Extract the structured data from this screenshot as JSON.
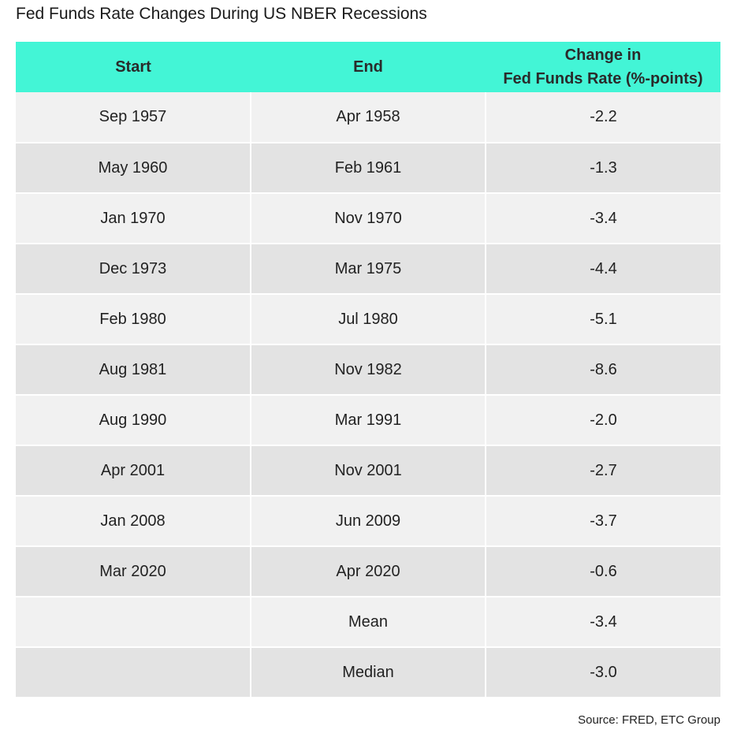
{
  "title": "Fed Funds Rate Changes During US NBER Recessions",
  "header": {
    "start": "Start",
    "end": "End",
    "change_line1": "Change in",
    "change_line2": "Fed Funds Rate (%-points)"
  },
  "rows": [
    {
      "start": "Sep 1957",
      "end": "Apr 1958",
      "change": "-2.2"
    },
    {
      "start": "May 1960",
      "end": "Feb 1961",
      "change": "-1.3"
    },
    {
      "start": "Jan 1970",
      "end": "Nov 1970",
      "change": "-3.4"
    },
    {
      "start": "Dec 1973",
      "end": "Mar 1975",
      "change": "-4.4"
    },
    {
      "start": "Feb 1980",
      "end": "Jul 1980",
      "change": "-5.1"
    },
    {
      "start": "Aug 1981",
      "end": "Nov 1982",
      "change": "-8.6"
    },
    {
      "start": "Aug 1990",
      "end": "Mar 1991",
      "change": "-2.0"
    },
    {
      "start": "Apr 2001",
      "end": "Nov 2001",
      "change": "-2.7"
    },
    {
      "start": "Jan 2008",
      "end": "Jun 2009",
      "change": "-3.7"
    },
    {
      "start": "Mar 2020",
      "end": "Apr 2020",
      "change": "-0.6"
    },
    {
      "start": "",
      "end": "Mean",
      "change": "-3.4"
    },
    {
      "start": "",
      "end": "Median",
      "change": "-3.0"
    }
  ],
  "source": "Source: FRED, ETC Group",
  "colors": {
    "header_bg": "#43f5d6",
    "row_light": "#f1f1f1",
    "row_dark": "#e3e3e3"
  },
  "chart_data": {
    "type": "table",
    "title": "Fed Funds Rate Changes During US NBER Recessions",
    "columns": [
      "Start",
      "End",
      "Change in Fed Funds Rate (%-points)"
    ],
    "rows": [
      [
        "Sep 1957",
        "Apr 1958",
        -2.2
      ],
      [
        "May 1960",
        "Feb 1961",
        -1.3
      ],
      [
        "Jan 1970",
        "Nov 1970",
        -3.4
      ],
      [
        "Dec 1973",
        "Mar 1975",
        -4.4
      ],
      [
        "Feb 1980",
        "Jul 1980",
        -5.1
      ],
      [
        "Aug 1981",
        "Nov 1982",
        -8.6
      ],
      [
        "Aug 1990",
        "Mar 1991",
        -2.0
      ],
      [
        "Apr 2001",
        "Nov 2001",
        -2.7
      ],
      [
        "Jan 2008",
        "Jun 2009",
        -3.7
      ],
      [
        "Mar 2020",
        "Apr 2020",
        -0.6
      ],
      [
        "",
        "Mean",
        -3.4
      ],
      [
        "",
        "Median",
        -3.0
      ]
    ],
    "source": "Source: FRED, ETC Group"
  }
}
